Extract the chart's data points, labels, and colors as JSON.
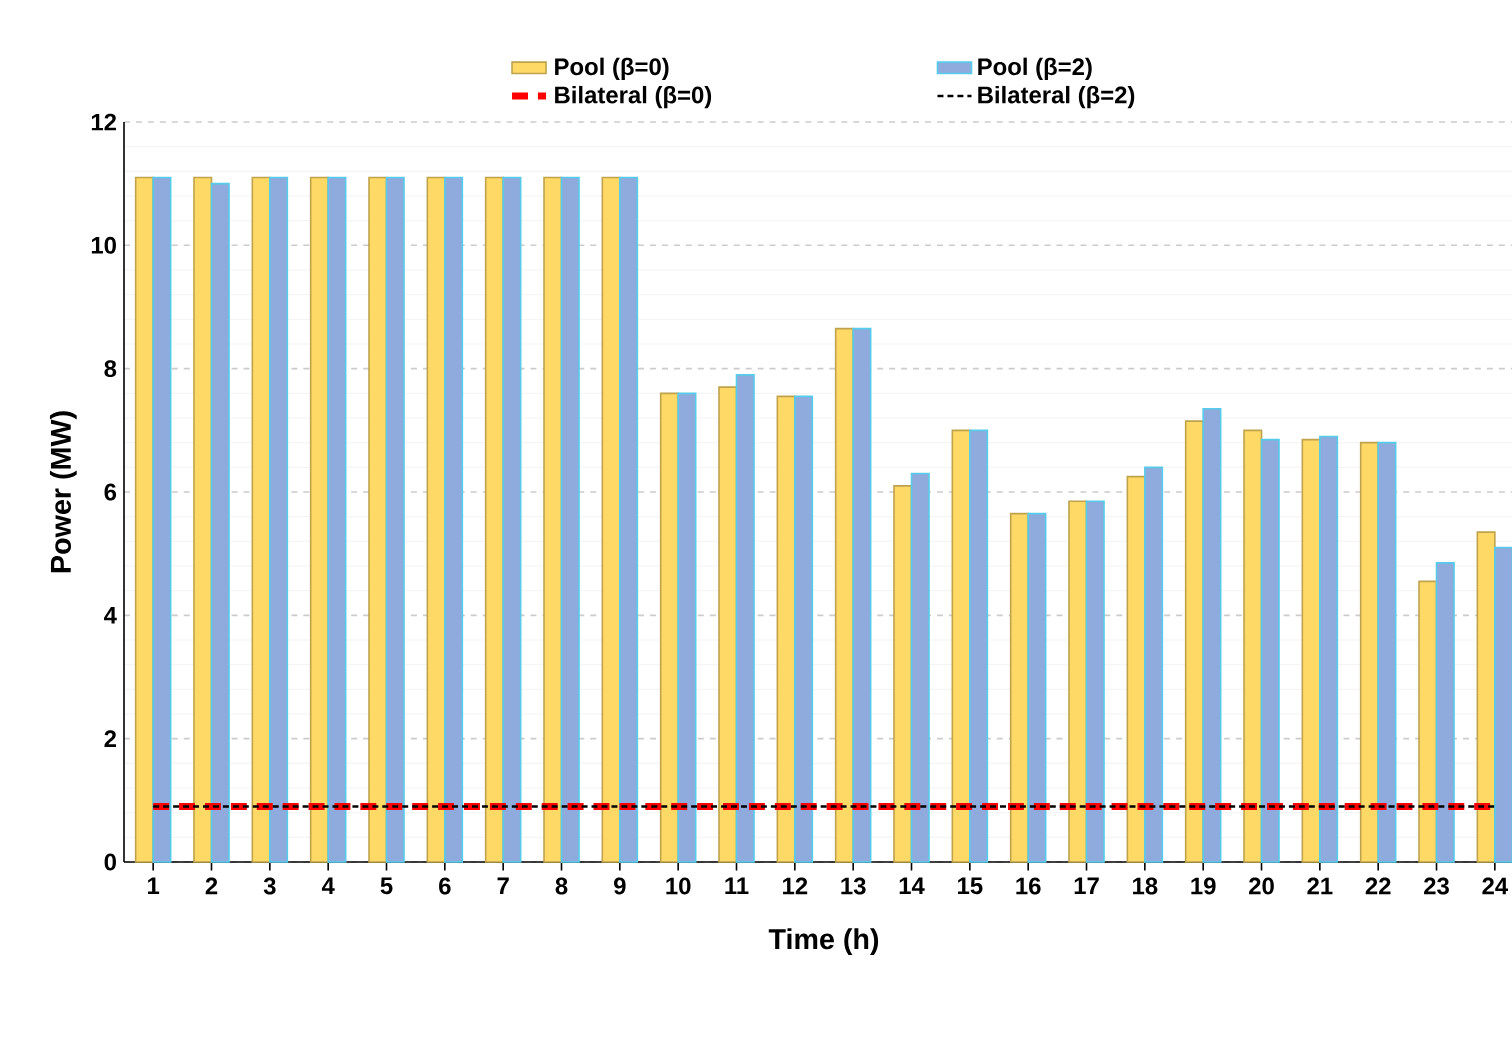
{
  "chart_data": {
    "type": "bar",
    "xlabel": "Time (h)",
    "ylabel": "Power (MW)",
    "categories": [
      "1",
      "2",
      "3",
      "4",
      "5",
      "6",
      "7",
      "8",
      "9",
      "10",
      "11",
      "12",
      "13",
      "14",
      "15",
      "16",
      "17",
      "18",
      "19",
      "20",
      "21",
      "22",
      "23",
      "24"
    ],
    "series": [
      {
        "name": "Pool  (β=0)",
        "color": "#ffd966",
        "values": [
          11.1,
          11.1,
          11.1,
          11.1,
          11.1,
          11.1,
          11.1,
          11.1,
          11.1,
          7.6,
          7.7,
          7.55,
          8.65,
          6.1,
          7.0,
          5.65,
          5.85,
          6.25,
          7.15,
          7.0,
          6.85,
          6.8,
          4.55,
          5.35
        ]
      },
      {
        "name": "Pool (β=2)",
        "color": "#8faadc",
        "values": [
          11.1,
          11.0,
          11.1,
          11.1,
          11.1,
          11.1,
          11.1,
          11.1,
          11.1,
          7.6,
          7.9,
          7.55,
          8.65,
          6.3,
          7.0,
          5.65,
          5.85,
          6.4,
          7.35,
          6.85,
          6.9,
          6.8,
          4.85,
          5.1
        ]
      },
      {
        "name": "Bilateral (β=0)",
        "type": "line",
        "color": "#ff0000",
        "line_style": "dashed",
        "values": [
          0.9,
          0.9,
          0.9,
          0.9,
          0.9,
          0.9,
          0.9,
          0.9,
          0.9,
          0.9,
          0.9,
          0.9,
          0.9,
          0.9,
          0.9,
          0.9,
          0.9,
          0.9,
          0.9,
          0.9,
          0.9,
          0.9,
          0.9,
          0.9
        ]
      },
      {
        "name": "Bilateral (β=2)",
        "type": "line",
        "color": "#000000",
        "line_style": "dashed",
        "values": [
          0.9,
          0.9,
          0.9,
          0.9,
          0.9,
          0.9,
          0.9,
          0.9,
          0.9,
          0.9,
          0.9,
          0.9,
          0.9,
          0.9,
          0.9,
          0.9,
          0.9,
          0.9,
          0.9,
          0.9,
          0.9,
          0.9,
          0.9,
          0.9
        ]
      }
    ],
    "ylim": [
      0,
      12
    ],
    "yticks": [
      0,
      2,
      4,
      6,
      8,
      10,
      12
    ],
    "grid": "y",
    "legend": "top",
    "marker": "none"
  }
}
